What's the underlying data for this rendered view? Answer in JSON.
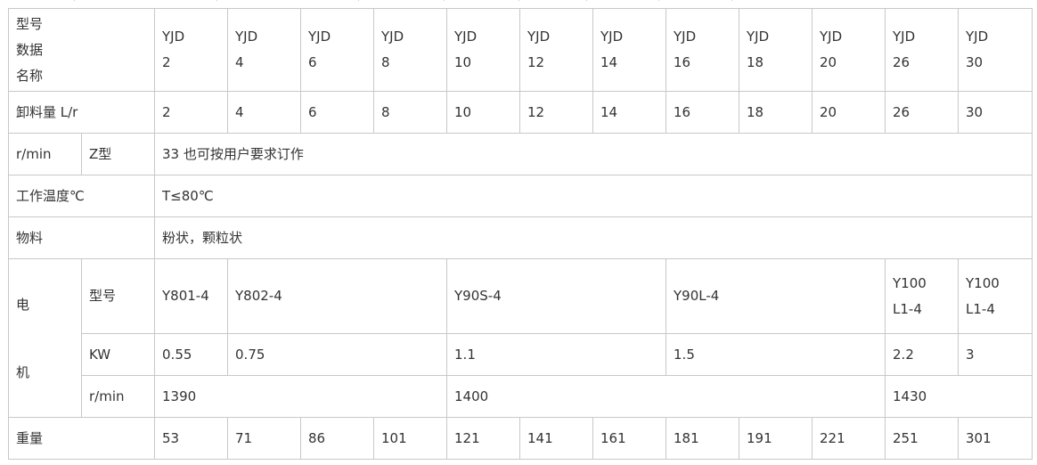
{
  "header": {
    "label_lines": [
      "型号",
      "数据",
      "名称"
    ],
    "models": [
      [
        "YJD",
        "2"
      ],
      [
        "YJD",
        "4"
      ],
      [
        "YJD",
        "6"
      ],
      [
        "YJD",
        "8"
      ],
      [
        "YJD",
        "10"
      ],
      [
        "YJD",
        "12"
      ],
      [
        "YJD",
        "14"
      ],
      [
        "YJD",
        "16"
      ],
      [
        "YJD",
        "18"
      ],
      [
        "YJD",
        "20"
      ],
      [
        "YJD",
        "26"
      ],
      [
        "YJD",
        "30"
      ]
    ]
  },
  "discharge": {
    "label": "卸料量 L/r",
    "values": [
      "2",
      "4",
      "6",
      "8",
      "10",
      "12",
      "14",
      "16",
      "18",
      "20",
      "26",
      "30"
    ]
  },
  "speed": {
    "label": "r/min",
    "sub_label": "Z型",
    "value": "33 也可按用户要求订作"
  },
  "temperature": {
    "label": "工作温度℃",
    "value": "T≤80℃"
  },
  "material": {
    "label": "物料",
    "value": "粉状，颗粒状"
  },
  "motor": {
    "label_lines": [
      "电",
      "机"
    ],
    "model": {
      "label": "型号",
      "values": [
        "Y801-4",
        "Y802-4",
        "Y90S-4",
        "Y90L-4"
      ],
      "last": [
        [
          "Y100",
          "L1-4"
        ],
        [
          "Y100",
          "L1-4"
        ]
      ]
    },
    "power": {
      "label": "KW",
      "values": [
        "0.55",
        "0.75",
        "1.1",
        "1.5",
        "2.2",
        "3"
      ]
    },
    "rpm": {
      "label": "r/min",
      "values": [
        "1390",
        "1400",
        "1430"
      ]
    }
  },
  "weight": {
    "label": "重量",
    "values": [
      "53",
      "71",
      "86",
      "101",
      "121",
      "141",
      "161",
      "181",
      "191",
      "221",
      "251",
      "301"
    ]
  }
}
